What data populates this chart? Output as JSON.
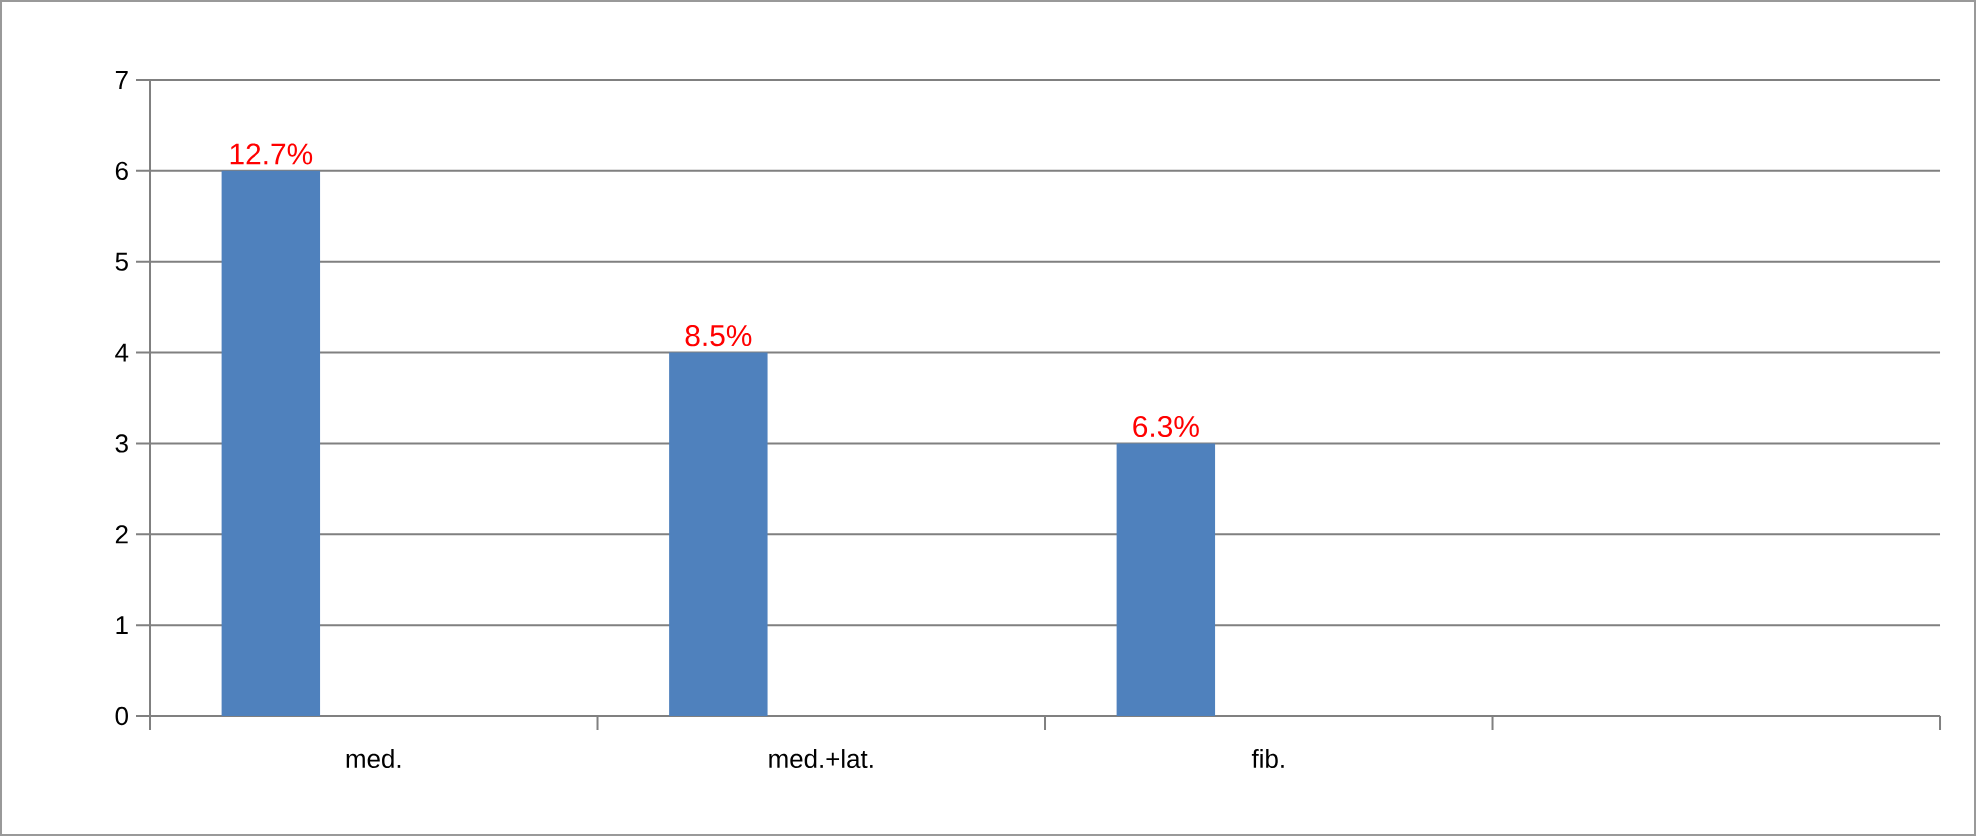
{
  "chart_data": {
    "type": "bar",
    "categories": [
      "med.",
      "med.+lat.",
      "fib.",
      null
    ],
    "values": [
      6,
      4,
      3,
      null
    ],
    "annotations": [
      "12.7%",
      "8.5%",
      "6.3%"
    ],
    "color": "#4f81bd",
    "ylim": [
      0,
      7
    ],
    "yticks": [
      0,
      1,
      2,
      3,
      4,
      5,
      6,
      7
    ],
    "grid": "y"
  }
}
